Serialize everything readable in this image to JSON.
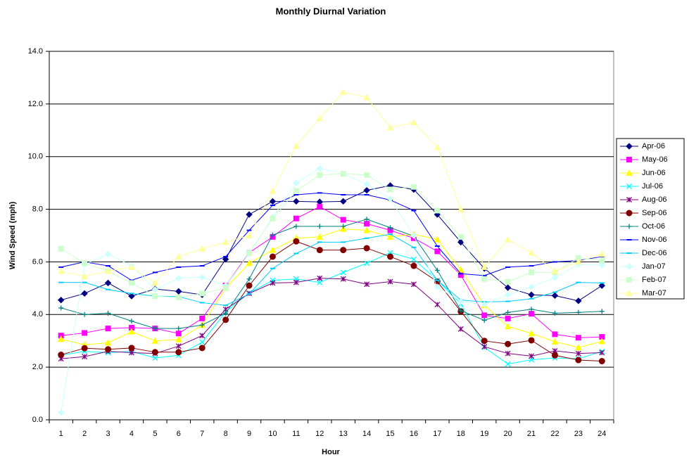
{
  "chart_data": {
    "type": "line",
    "title": "Monthly Diurnal Variation",
    "x_label": "Hour",
    "y_label": "Wind Speed (mph)",
    "categories": [
      1,
      2,
      3,
      4,
      5,
      6,
      7,
      8,
      9,
      10,
      11,
      12,
      13,
      14,
      15,
      16,
      17,
      18,
      19,
      20,
      21,
      22,
      23,
      24
    ],
    "ylim": [
      0,
      14
    ],
    "yticks": [
      {
        "value": 0,
        "label": "0.0"
      },
      {
        "value": 2,
        "label": "2.0"
      },
      {
        "value": 4,
        "label": "4.0"
      },
      {
        "value": 6,
        "label": "6.0"
      },
      {
        "value": 8,
        "label": "8.0"
      },
      {
        "value": 10,
        "label": "10.0"
      },
      {
        "value": 12,
        "label": "12.0"
      },
      {
        "value": 14,
        "label": "14.0"
      }
    ],
    "grid": true,
    "legend": "right",
    "series": [
      {
        "name": "Apr-06",
        "color": "#000080",
        "marker": "diamond",
        "values": [
          4.55,
          4.8,
          5.2,
          4.7,
          4.97,
          4.88,
          4.75,
          6.1,
          7.8,
          8.3,
          8.3,
          8.28,
          8.3,
          8.72,
          8.9,
          8.75,
          7.8,
          6.75,
          5.75,
          5.02,
          4.75,
          4.72,
          4.52,
          5.1
        ]
      },
      {
        "name": "May-06",
        "color": "#FF00FF",
        "marker": "square",
        "values": [
          3.2,
          3.3,
          3.47,
          3.5,
          3.47,
          3.28,
          3.85,
          5.1,
          6.35,
          6.95,
          7.65,
          8.1,
          7.6,
          7.45,
          7.2,
          6.9,
          6.4,
          5.5,
          3.97,
          3.85,
          4.03,
          3.25,
          3.12,
          3.15
        ]
      },
      {
        "name": "Jun-06",
        "color": "#FFFF00",
        "marker": "triangle",
        "values": [
          3.07,
          2.85,
          2.93,
          3.35,
          3.0,
          3.05,
          3.6,
          5.0,
          5.95,
          6.45,
          6.9,
          6.95,
          7.25,
          7.2,
          6.95,
          7.05,
          6.85,
          5.7,
          4.35,
          3.55,
          3.28,
          2.97,
          2.75,
          2.98
        ]
      },
      {
        "name": "Jul-06",
        "color": "#00FFFF",
        "marker": "x",
        "values": [
          2.45,
          2.6,
          2.55,
          2.6,
          2.35,
          2.45,
          2.95,
          4.1,
          4.82,
          5.3,
          5.35,
          5.22,
          5.6,
          5.95,
          6.35,
          6.1,
          5.3,
          4.4,
          2.75,
          2.12,
          2.28,
          2.35,
          2.32,
          2.6
        ]
      },
      {
        "name": "Aug-06",
        "color": "#800080",
        "marker": "star",
        "values": [
          2.32,
          2.4,
          2.6,
          2.55,
          2.52,
          2.8,
          3.2,
          4.2,
          4.8,
          5.2,
          5.22,
          5.38,
          5.35,
          5.15,
          5.25,
          5.15,
          4.38,
          3.45,
          2.78,
          2.52,
          2.42,
          2.62,
          2.52,
          2.55
        ]
      },
      {
        "name": "Sep-06",
        "color": "#800000",
        "marker": "circle",
        "values": [
          2.47,
          2.72,
          2.68,
          2.73,
          2.57,
          2.57,
          2.73,
          3.8,
          5.1,
          6.2,
          6.78,
          6.45,
          6.45,
          6.52,
          6.2,
          5.85,
          5.25,
          4.12,
          3.0,
          2.88,
          3.02,
          2.45,
          2.27,
          2.23
        ]
      },
      {
        "name": "Oct-06",
        "color": "#008080",
        "marker": "plus",
        "values": [
          4.25,
          4.0,
          4.05,
          3.75,
          3.47,
          3.47,
          3.6,
          4.05,
          5.35,
          7.02,
          7.35,
          7.35,
          7.35,
          7.62,
          7.3,
          6.98,
          5.68,
          4.15,
          3.78,
          4.08,
          4.2,
          4.05,
          4.08,
          4.12
        ]
      },
      {
        "name": "Nov-06",
        "color": "#0000FF",
        "marker": "dash",
        "values": [
          5.8,
          6.0,
          5.85,
          5.3,
          5.6,
          5.8,
          5.85,
          6.2,
          7.2,
          8.15,
          8.55,
          8.62,
          8.55,
          8.55,
          8.35,
          7.95,
          6.6,
          5.55,
          5.48,
          5.8,
          5.85,
          6.0,
          6.05,
          6.2
        ]
      },
      {
        "name": "Dec-06",
        "color": "#00CCFF",
        "marker": "dash",
        "values": [
          5.22,
          5.22,
          4.95,
          4.8,
          4.7,
          4.68,
          4.45,
          4.35,
          4.78,
          5.75,
          6.32,
          6.75,
          6.75,
          6.9,
          7.05,
          6.55,
          5.3,
          4.55,
          4.48,
          4.5,
          4.6,
          4.85,
          5.22,
          5.2
        ]
      },
      {
        "name": "Jan-07",
        "color": "#CCFFFF",
        "marker": "diamond",
        "values": [
          0.28,
          5.9,
          6.3,
          5.85,
          4.95,
          5.38,
          5.42,
          5.1,
          6.3,
          7.7,
          9.0,
          9.55,
          9.35,
          8.95,
          8.4,
          7.0,
          5.05,
          4.5,
          4.38,
          4.75,
          5.05,
          5.4,
          5.9,
          5.88
        ]
      },
      {
        "name": "Feb-07",
        "color": "#CCFFCC",
        "marker": "square",
        "values": [
          6.5,
          5.95,
          5.65,
          5.2,
          4.7,
          4.65,
          4.8,
          5.0,
          6.35,
          7.65,
          8.7,
          9.3,
          9.35,
          9.3,
          8.75,
          8.85,
          7.95,
          6.95,
          5.35,
          5.25,
          5.6,
          5.6,
          6.15,
          6.05
        ]
      },
      {
        "name": "Mar-07",
        "color": "#FFFF99",
        "marker": "triangle",
        "values": [
          5.65,
          5.45,
          5.65,
          5.8,
          5.2,
          6.2,
          6.5,
          6.75,
          7.0,
          8.7,
          10.4,
          11.45,
          12.45,
          12.25,
          11.1,
          11.3,
          10.35,
          8.0,
          5.8,
          6.85,
          6.35,
          5.65,
          6.0,
          6.3
        ]
      }
    ]
  }
}
